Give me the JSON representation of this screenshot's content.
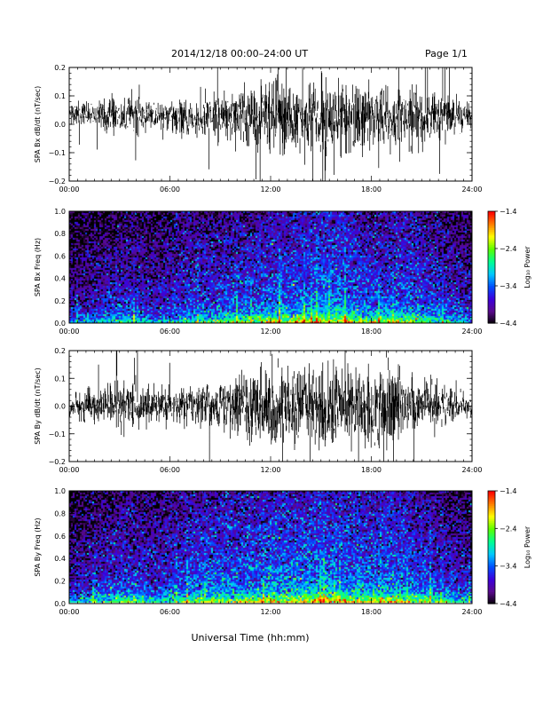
{
  "header": {
    "title": "2014/12/18  00:00–24:00 UT",
    "page": "Page 1/1"
  },
  "xaxis": {
    "label": "Universal Time (hh:mm)",
    "range_hours": [
      0,
      24
    ],
    "ticks": [
      {
        "value": 0,
        "label": "00:00"
      },
      {
        "value": 6,
        "label": "06:00"
      },
      {
        "value": 12,
        "label": "12:00"
      },
      {
        "value": 18,
        "label": "18:00"
      },
      {
        "value": 24,
        "label": "24:00"
      }
    ]
  },
  "colormap": [
    "#000000",
    "#5a0a8c",
    "#3c00dc",
    "#0050ff",
    "#00c8ff",
    "#00ff90",
    "#5aff00",
    "#ffff00",
    "#ff8000",
    "#ff0000"
  ],
  "chart_data": [
    {
      "type": "line",
      "ylabel": "SPA Bx dB/dt (nT/sec)",
      "ylim": [
        -0.2,
        0.2
      ],
      "yticks": [
        {
          "value": 0.2,
          "label": "0.2"
        },
        {
          "value": 0.1,
          "label": "0.1"
        },
        {
          "value": 0.0,
          "label": "0.0"
        },
        {
          "value": -0.1,
          "label": "−0.1"
        },
        {
          "value": -0.2,
          "label": "−0.2"
        }
      ],
      "series": [
        {
          "x_hours": [
            0,
            1,
            2,
            3,
            4,
            5,
            6,
            7,
            8,
            9,
            10,
            11,
            12,
            13,
            14,
            15,
            16,
            17,
            18,
            19,
            20,
            21,
            22,
            23,
            24
          ],
          "offset": [
            0.04,
            0.04,
            0.035,
            0.03,
            0.03,
            0.03,
            0.025,
            0.02,
            0.02,
            0.03,
            0.03,
            0.03,
            0.03,
            0.02,
            0.03,
            0.02,
            0.02,
            0.02,
            0.03,
            0.02,
            0.02,
            0.02,
            0.03,
            0.03,
            0.03
          ],
          "envelope": [
            0.04,
            0.045,
            0.05,
            0.07,
            0.06,
            0.045,
            0.05,
            0.06,
            0.07,
            0.07,
            0.09,
            0.11,
            0.12,
            0.13,
            0.12,
            0.14,
            0.14,
            0.13,
            0.12,
            0.1,
            0.13,
            0.1,
            0.08,
            0.06,
            0.05
          ]
        }
      ]
    },
    {
      "type": "heatmap",
      "ylabel": "SPA Bx Freq (Hz)",
      "ylim": [
        0,
        1.0
      ],
      "yticks": [
        {
          "value": 1.0,
          "label": "1.0"
        },
        {
          "value": 0.8,
          "label": "0.8"
        },
        {
          "value": 0.6,
          "label": "0.6"
        },
        {
          "value": 0.4,
          "label": "0.4"
        },
        {
          "value": 0.2,
          "label": "0.2"
        },
        {
          "value": 0.0,
          "label": "0.0"
        }
      ],
      "colorbar": {
        "label": "Log₁₀ Power",
        "range": [
          -4.4,
          -1.4
        ],
        "ticks": [
          {
            "value": -1.4,
            "label": "−1.4"
          },
          {
            "value": -2.4,
            "label": "−2.4"
          },
          {
            "value": -3.4,
            "label": "−3.4"
          },
          {
            "value": -4.4,
            "label": "−4.4"
          }
        ]
      },
      "profile": {
        "x_hours": [
          0,
          1,
          2,
          3,
          4,
          5,
          6,
          7,
          8,
          9,
          10,
          11,
          12,
          13,
          14,
          15,
          16,
          17,
          18,
          19,
          20,
          21,
          22,
          23,
          24
        ],
        "floor_power": [
          -4.0,
          -3.9,
          -3.8,
          -3.7,
          -3.7,
          -3.8,
          -3.7,
          -3.6,
          -3.6,
          -3.6,
          -3.5,
          -3.5,
          -3.4,
          -3.4,
          -3.4,
          -3.3,
          -3.3,
          -3.4,
          -3.5,
          -3.5,
          -3.4,
          -3.5,
          -3.6,
          -3.7,
          -3.8
        ],
        "lowfreq_power": [
          -3.2,
          -3.0,
          -2.8,
          -2.6,
          -2.7,
          -2.9,
          -2.9,
          -2.6,
          -2.5,
          -2.4,
          -2.3,
          -2.1,
          -2.0,
          -1.9,
          -1.9,
          -1.7,
          -1.9,
          -2.0,
          -2.1,
          -2.2,
          -2.0,
          -2.3,
          -2.5,
          -2.8,
          -3.0
        ]
      }
    },
    {
      "type": "line",
      "ylabel": "SPA By dB/dt (nT/sec)",
      "ylim": [
        -0.2,
        0.2
      ],
      "yticks": [
        {
          "value": 0.2,
          "label": "0.2"
        },
        {
          "value": 0.1,
          "label": "0.1"
        },
        {
          "value": 0.0,
          "label": "0.0"
        },
        {
          "value": -0.1,
          "label": "−0.1"
        },
        {
          "value": -0.2,
          "label": "−0.2"
        }
      ],
      "series": [
        {
          "x_hours": [
            0,
            1,
            2,
            3,
            4,
            5,
            6,
            7,
            8,
            9,
            10,
            11,
            12,
            13,
            14,
            15,
            16,
            17,
            18,
            19,
            20,
            21,
            22,
            23,
            24
          ],
          "offset": [
            0.0,
            0.0,
            0.0,
            0.0,
            0.0,
            0.0,
            0.0,
            0.0,
            0.0,
            0.0,
            0.0,
            0.0,
            0.0,
            0.0,
            0.0,
            0.0,
            0.0,
            0.0,
            0.0,
            0.0,
            0.0,
            0.0,
            0.0,
            0.0,
            0.0
          ],
          "envelope": [
            0.04,
            0.05,
            0.06,
            0.09,
            0.08,
            0.06,
            0.06,
            0.07,
            0.08,
            0.08,
            0.1,
            0.12,
            0.14,
            0.15,
            0.13,
            0.15,
            0.14,
            0.12,
            0.13,
            0.18,
            0.11,
            0.09,
            0.07,
            0.06,
            0.05
          ]
        }
      ]
    },
    {
      "type": "heatmap",
      "ylabel": "SPA By Freq (Hz)",
      "ylim": [
        0,
        1.0
      ],
      "yticks": [
        {
          "value": 1.0,
          "label": "1.0"
        },
        {
          "value": 0.8,
          "label": "0.8"
        },
        {
          "value": 0.6,
          "label": "0.6"
        },
        {
          "value": 0.4,
          "label": "0.4"
        },
        {
          "value": 0.2,
          "label": "0.2"
        },
        {
          "value": 0.0,
          "label": "0.0"
        }
      ],
      "colorbar": {
        "label": "Log₁₀ Power",
        "range": [
          -4.4,
          -1.4
        ],
        "ticks": [
          {
            "value": -1.4,
            "label": "−1.4"
          },
          {
            "value": -2.4,
            "label": "−2.4"
          },
          {
            "value": -3.4,
            "label": "−3.4"
          },
          {
            "value": -4.4,
            "label": "−4.4"
          }
        ]
      },
      "profile": {
        "x_hours": [
          0,
          1,
          2,
          3,
          4,
          5,
          6,
          7,
          8,
          9,
          10,
          11,
          12,
          13,
          14,
          15,
          16,
          17,
          18,
          19,
          20,
          21,
          22,
          23,
          24
        ],
        "floor_power": [
          -3.9,
          -3.8,
          -3.7,
          -3.6,
          -3.6,
          -3.7,
          -3.6,
          -3.5,
          -3.4,
          -3.4,
          -3.4,
          -3.4,
          -3.3,
          -3.3,
          -3.3,
          -3.2,
          -3.3,
          -3.3,
          -3.4,
          -3.3,
          -3.4,
          -3.5,
          -3.6,
          -3.7,
          -3.8
        ],
        "lowfreq_power": [
          -3.0,
          -2.8,
          -2.6,
          -2.4,
          -2.5,
          -2.7,
          -2.7,
          -2.4,
          -2.3,
          -2.2,
          -2.1,
          -2.0,
          -2.0,
          -1.9,
          -1.8,
          -1.7,
          -1.8,
          -1.9,
          -2.0,
          -1.8,
          -2.0,
          -2.2,
          -2.4,
          -2.6,
          -2.9
        ]
      }
    }
  ]
}
